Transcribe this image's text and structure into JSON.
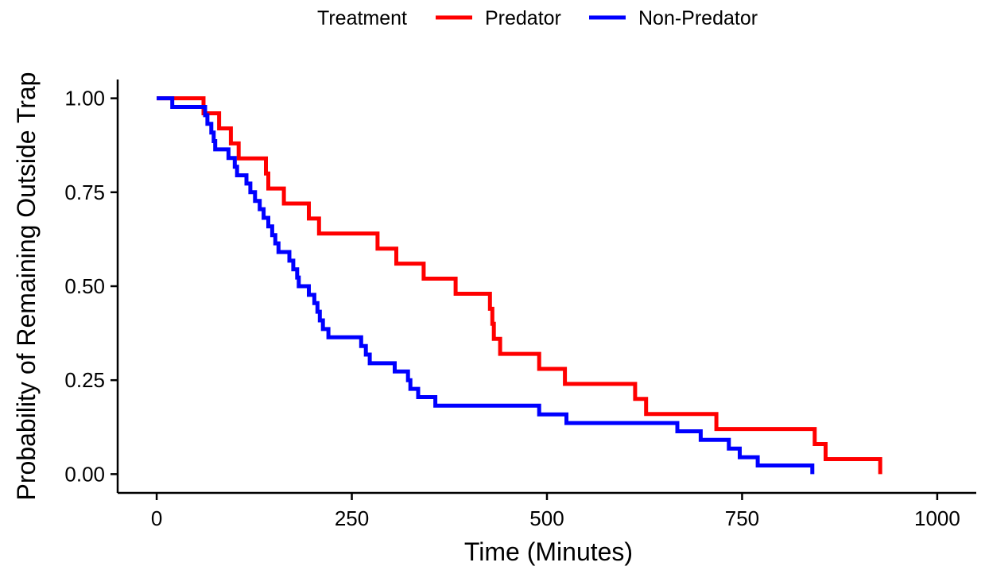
{
  "chart_data": {
    "type": "line",
    "step": true,
    "title": "",
    "xlabel": "Time (Minutes)",
    "ylabel": "Probability of Remaining Outside Trap",
    "xlim": [
      -50,
      1050
    ],
    "ylim": [
      -0.05,
      1.05
    ],
    "x_ticks": [
      0,
      250,
      500,
      750,
      1000
    ],
    "x_tick_labels": [
      "0",
      "250",
      "500",
      "750",
      "1000"
    ],
    "y_ticks": [
      0.0,
      0.25,
      0.5,
      0.75,
      1.0
    ],
    "y_tick_labels": [
      "0.00",
      "0.25",
      "0.50",
      "0.75",
      "1.00"
    ],
    "grid": false,
    "legend": {
      "title": "Treatment",
      "position": "top"
    },
    "series": [
      {
        "name": "Predator",
        "color": "#ff0000",
        "points": [
          [
            0,
            1.0
          ],
          [
            60,
            0.96
          ],
          [
            80,
            0.92
          ],
          [
            95,
            0.88
          ],
          [
            105,
            0.84
          ],
          [
            140,
            0.8
          ],
          [
            143,
            0.76
          ],
          [
            163,
            0.72
          ],
          [
            195,
            0.68
          ],
          [
            208,
            0.64
          ],
          [
            283,
            0.6
          ],
          [
            307,
            0.56
          ],
          [
            342,
            0.52
          ],
          [
            383,
            0.48
          ],
          [
            427,
            0.44
          ],
          [
            430,
            0.4
          ],
          [
            432,
            0.36
          ],
          [
            440,
            0.32
          ],
          [
            490,
            0.28
          ],
          [
            523,
            0.24
          ],
          [
            613,
            0.2
          ],
          [
            627,
            0.16
          ],
          [
            717,
            0.12
          ],
          [
            843,
            0.08
          ],
          [
            857,
            0.04
          ],
          [
            927,
            0.0
          ]
        ]
      },
      {
        "name": "Non-Predator",
        "color": "#0000ff",
        "points": [
          [
            0,
            1.0
          ],
          [
            20,
            0.977
          ],
          [
            62,
            0.955
          ],
          [
            65,
            0.932
          ],
          [
            70,
            0.909
          ],
          [
            73,
            0.886
          ],
          [
            75,
            0.864
          ],
          [
            92,
            0.841
          ],
          [
            100,
            0.818
          ],
          [
            103,
            0.795
          ],
          [
            115,
            0.773
          ],
          [
            120,
            0.75
          ],
          [
            126,
            0.727
          ],
          [
            132,
            0.705
          ],
          [
            137,
            0.682
          ],
          [
            143,
            0.659
          ],
          [
            148,
            0.636
          ],
          [
            152,
            0.614
          ],
          [
            156,
            0.591
          ],
          [
            170,
            0.568
          ],
          [
            175,
            0.545
          ],
          [
            180,
            0.523
          ],
          [
            182,
            0.5
          ],
          [
            195,
            0.477
          ],
          [
            202,
            0.455
          ],
          [
            206,
            0.432
          ],
          [
            209,
            0.409
          ],
          [
            213,
            0.386
          ],
          [
            220,
            0.364
          ],
          [
            262,
            0.341
          ],
          [
            268,
            0.318
          ],
          [
            273,
            0.295
          ],
          [
            305,
            0.273
          ],
          [
            322,
            0.25
          ],
          [
            325,
            0.227
          ],
          [
            335,
            0.205
          ],
          [
            357,
            0.182
          ],
          [
            490,
            0.159
          ],
          [
            525,
            0.136
          ],
          [
            667,
            0.114
          ],
          [
            697,
            0.091
          ],
          [
            733,
            0.068
          ],
          [
            747,
            0.045
          ],
          [
            770,
            0.023
          ],
          [
            840,
            0.0
          ]
        ]
      }
    ]
  }
}
